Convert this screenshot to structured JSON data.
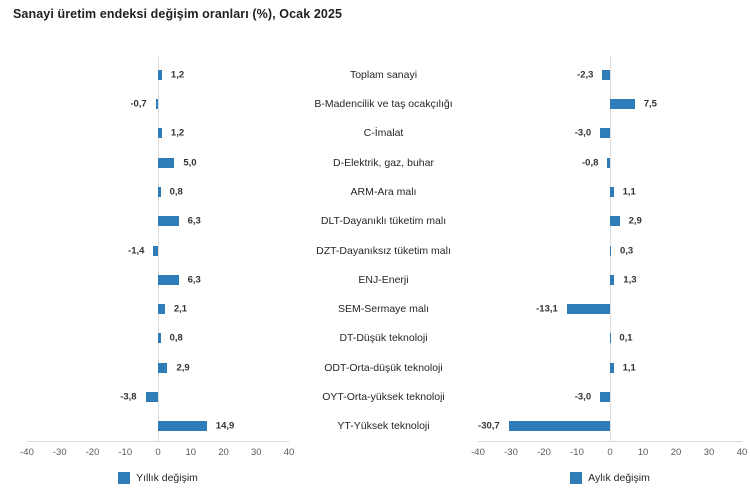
{
  "title": "Sanayi üretim endeksi değişim oranları (%), Ocak 2025",
  "colors": {
    "bar": "#2E7CB8",
    "axis_line": "#D9D9D9",
    "zero_line": "#DCDCDC",
    "tick_text": "#595959",
    "label_text": "#262626",
    "value_text": "#333333"
  },
  "chart_data": [
    {
      "type": "bar",
      "orientation": "horizontal",
      "legend": "Yıllık değişim",
      "legend_position": "bottom",
      "grid": false,
      "xlim": [
        -40,
        40
      ],
      "xticks": [
        -40,
        -30,
        -20,
        -10,
        0,
        10,
        20,
        30,
        40
      ],
      "bar_color": "#2E7CB8",
      "categories": [
        "Toplam sanayi",
        "B-Madencilik ve taş ocakçılığı",
        "C-İmalat",
        "D-Elektrik, gaz, buhar",
        "ARM-Ara malı",
        "DLT-Dayanıklı tüketim malı",
        "DZT-Dayanıksız tüketim malı",
        "ENJ-Enerji",
        "SEM-Sermaye malı",
        "DT-Düşük teknoloji",
        "ODT-Orta-düşük teknoloji",
        "OYT-Orta-yüksek teknoloji",
        "YT-Yüksek teknoloji"
      ],
      "values": [
        1.2,
        -0.7,
        1.2,
        5.0,
        0.8,
        6.3,
        -1.4,
        6.3,
        2.1,
        0.8,
        2.9,
        -3.8,
        14.9
      ],
      "value_labels": [
        "1,2",
        "-0,7",
        "1,2",
        "5,0",
        "0,8",
        "6,3",
        "-1,4",
        "6,3",
        "2,1",
        "0,8",
        "2,9",
        "-3,8",
        "14,9"
      ]
    },
    {
      "type": "bar",
      "orientation": "horizontal",
      "legend": "Aylık değişim",
      "legend_position": "bottom",
      "grid": false,
      "xlim": [
        -40,
        40
      ],
      "xticks": [
        -40,
        -30,
        -20,
        -10,
        0,
        10,
        20,
        30,
        40
      ],
      "bar_color": "#2E7CB8",
      "categories": [
        "Toplam sanayi",
        "B-Madencilik ve taş ocakçılığı",
        "C-İmalat",
        "D-Elektrik, gaz, buhar",
        "ARM-Ara malı",
        "DLT-Dayanıklı tüketim malı",
        "DZT-Dayanıksız tüketim malı",
        "ENJ-Enerji",
        "SEM-Sermaye malı",
        "DT-Düşük teknoloji",
        "ODT-Orta-düşük teknoloji",
        "OYT-Orta-yüksek teknoloji",
        "YT-Yüksek teknoloji"
      ],
      "values": [
        -2.3,
        7.5,
        -3.0,
        -0.8,
        1.1,
        2.9,
        0.3,
        1.3,
        -13.1,
        0.1,
        1.1,
        -3.0,
        -30.7
      ],
      "value_labels": [
        "-2,3",
        "7,5",
        "-3,0",
        "-0,8",
        "1,1",
        "2,9",
        "0,3",
        "1,3",
        "-13,1",
        "0,1",
        "1,1",
        "-3,0",
        "-30,7"
      ]
    }
  ]
}
